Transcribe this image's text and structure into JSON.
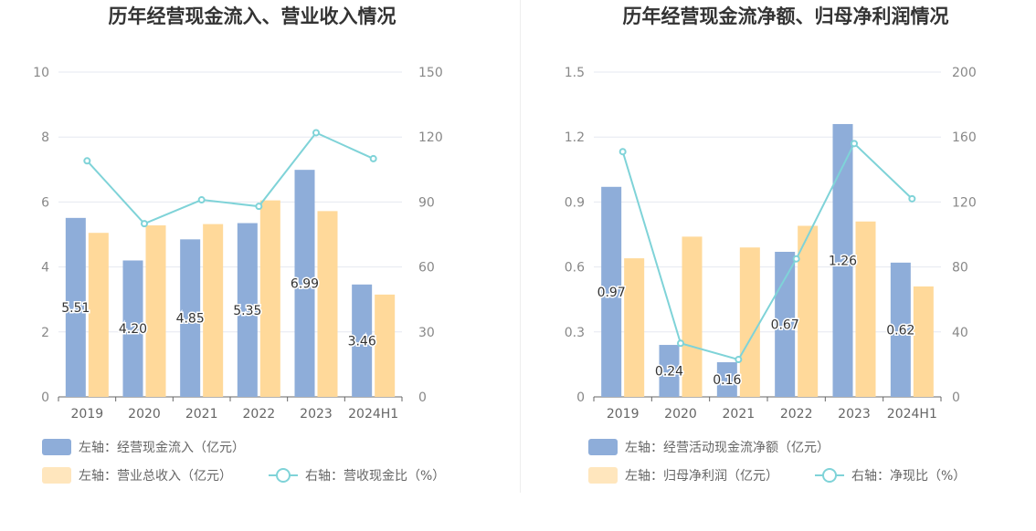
{
  "colors": {
    "bar_primary": "#8eadd9",
    "bar_secondary": "#ffd99a",
    "bar_secondary_legend": "#ffe6bd",
    "line": "#7fd3d8",
    "grid": "#e6e8f0",
    "axis": "#666666"
  },
  "chart_data": [
    {
      "type": "bar",
      "title": "历年经营现金流入、营业收入情况",
      "categories": [
        "2019",
        "2020",
        "2021",
        "2022",
        "2023",
        "2024H1"
      ],
      "left_axis": {
        "ylim": [
          0,
          10
        ],
        "ticks": [
          "0",
          "2",
          "4",
          "6",
          "8",
          "10"
        ]
      },
      "right_axis": {
        "ylim": [
          0,
          150
        ],
        "ticks": [
          "0",
          "30",
          "60",
          "90",
          "120",
          "150"
        ]
      },
      "grid": true,
      "legend_position": "bottom",
      "series": [
        {
          "name": "左轴：经营现金流入（亿元）",
          "kind": "bar",
          "axis": "left",
          "values": [
            5.51,
            4.2,
            4.85,
            5.35,
            6.99,
            3.46
          ],
          "labels": [
            "5.51",
            "4.20",
            "4.85",
            "5.35",
            "6.99",
            "3.46"
          ]
        },
        {
          "name": "左轴：营业总收入（亿元）",
          "kind": "bar",
          "axis": "left",
          "values": [
            5.05,
            5.28,
            5.32,
            6.05,
            5.72,
            3.15
          ]
        },
        {
          "name": "右轴：营收现金比（%）",
          "kind": "line",
          "axis": "right",
          "values": [
            109,
            80,
            91,
            88,
            122,
            110
          ]
        }
      ]
    },
    {
      "type": "bar",
      "title": "历年经营现金流净额、归母净利润情况",
      "categories": [
        "2019",
        "2020",
        "2021",
        "2022",
        "2023",
        "2024H1"
      ],
      "left_axis": {
        "ylim": [
          0,
          1.5
        ],
        "ticks": [
          "0",
          "0.3",
          "0.6",
          "0.9",
          "1.2",
          "1.5"
        ]
      },
      "right_axis": {
        "ylim": [
          0,
          200
        ],
        "ticks": [
          "0",
          "40",
          "80",
          "120",
          "160",
          "200"
        ]
      },
      "grid": true,
      "legend_position": "bottom",
      "series": [
        {
          "name": "左轴：经营活动现金流净额（亿元）",
          "kind": "bar",
          "axis": "left",
          "values": [
            0.97,
            0.24,
            0.16,
            0.67,
            1.26,
            0.62
          ],
          "labels": [
            "0.97",
            "0.24",
            "0.16",
            "0.67",
            "1.26",
            "0.62"
          ]
        },
        {
          "name": "左轴：归母净利润（亿元）",
          "kind": "bar",
          "axis": "left",
          "values": [
            0.64,
            0.74,
            0.69,
            0.79,
            0.81,
            0.51
          ]
        },
        {
          "name": "右轴：净现比（%）",
          "kind": "line",
          "axis": "right",
          "values": [
            151,
            33,
            23,
            85,
            156,
            122
          ]
        }
      ]
    }
  ]
}
